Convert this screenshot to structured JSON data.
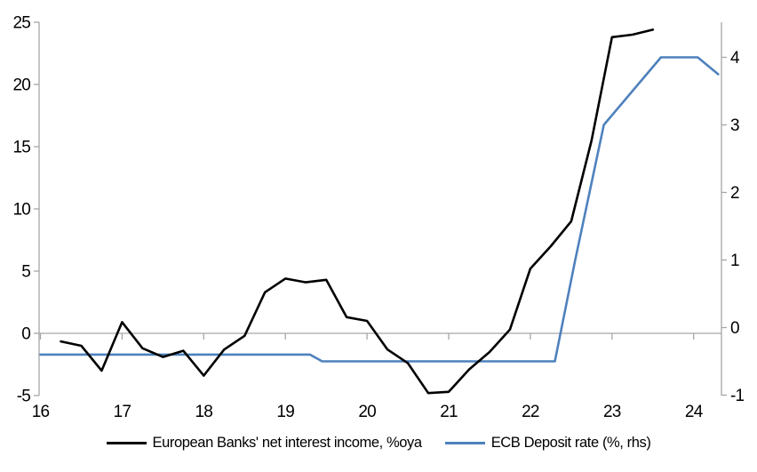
{
  "chart_data": {
    "type": "line",
    "title": "",
    "x_axis": {
      "ticks": [
        16,
        17,
        18,
        19,
        20,
        21,
        22,
        23,
        24
      ],
      "range": [
        16,
        24.35
      ],
      "unit": "year"
    },
    "left_axis": {
      "ticks": [
        -5,
        0,
        5,
        10,
        15,
        20,
        25
      ],
      "range": [
        -5,
        25
      ]
    },
    "right_axis": {
      "ticks": [
        -1,
        0,
        1,
        2,
        3,
        4
      ],
      "range": [
        -1.05,
        4.5
      ]
    },
    "grid": "zero-line-only",
    "legend_position": "bottom",
    "series": [
      {
        "name": "European Banks' net interest income, %oya",
        "axis": "left",
        "color": "#000000",
        "points": [
          [
            16.25,
            -0.65
          ],
          [
            16.5,
            -1.0
          ],
          [
            16.75,
            -3.0
          ],
          [
            17.0,
            0.9
          ],
          [
            17.25,
            -1.2
          ],
          [
            17.5,
            -1.9
          ],
          [
            17.75,
            -1.4
          ],
          [
            18.0,
            -3.4
          ],
          [
            18.25,
            -1.3
          ],
          [
            18.5,
            -0.2
          ],
          [
            18.75,
            3.3
          ],
          [
            19.0,
            4.4
          ],
          [
            19.25,
            4.1
          ],
          [
            19.5,
            4.3
          ],
          [
            19.75,
            1.3
          ],
          [
            20.0,
            1.0
          ],
          [
            20.25,
            -1.3
          ],
          [
            20.5,
            -2.4
          ],
          [
            20.75,
            -4.8
          ],
          [
            21.0,
            -4.7
          ],
          [
            21.25,
            -2.9
          ],
          [
            21.5,
            -1.5
          ],
          [
            21.75,
            0.3
          ],
          [
            22.0,
            5.2
          ],
          [
            22.25,
            7.0
          ],
          [
            22.5,
            9.0
          ],
          [
            22.75,
            15.5
          ],
          [
            23.0,
            23.8
          ],
          [
            23.25,
            24.0
          ],
          [
            23.5,
            24.4
          ]
        ]
      },
      {
        "name": "ECB Deposit rate (%, rhs)",
        "axis": "right",
        "color": "#4E81BD",
        "points": [
          [
            16.0,
            -0.4
          ],
          [
            19.3,
            -0.4
          ],
          [
            19.45,
            -0.5
          ],
          [
            22.3,
            -0.5
          ],
          [
            22.55,
            1.0
          ],
          [
            22.9,
            3.0
          ],
          [
            23.6,
            4.0
          ],
          [
            24.05,
            4.0
          ],
          [
            24.3,
            3.75
          ]
        ]
      }
    ]
  },
  "colors": {
    "background": "#FFFFFF",
    "axis": "#A6A6A6",
    "zero_line": "#A6A6A6",
    "text": "#000000",
    "nii_line": "#000000",
    "ecb_line": "#4E81BD"
  }
}
